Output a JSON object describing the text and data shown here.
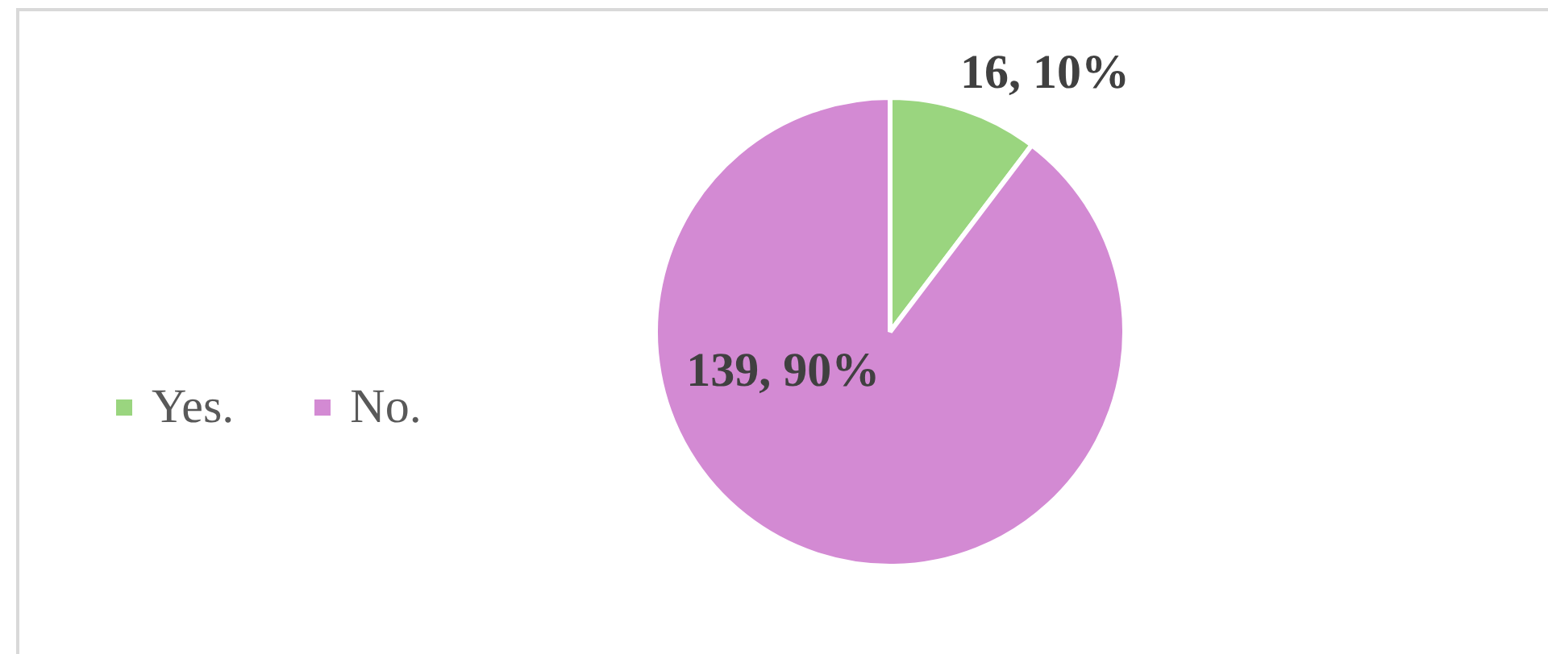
{
  "chart_data": {
    "type": "pie",
    "categories": [
      "Yes.",
      "No."
    ],
    "values": [
      16,
      139
    ],
    "colors": [
      "#9ad57f",
      "#d38ad3"
    ],
    "value_labels": [
      "16, 10%",
      "139, 90%"
    ],
    "legend": "left"
  }
}
